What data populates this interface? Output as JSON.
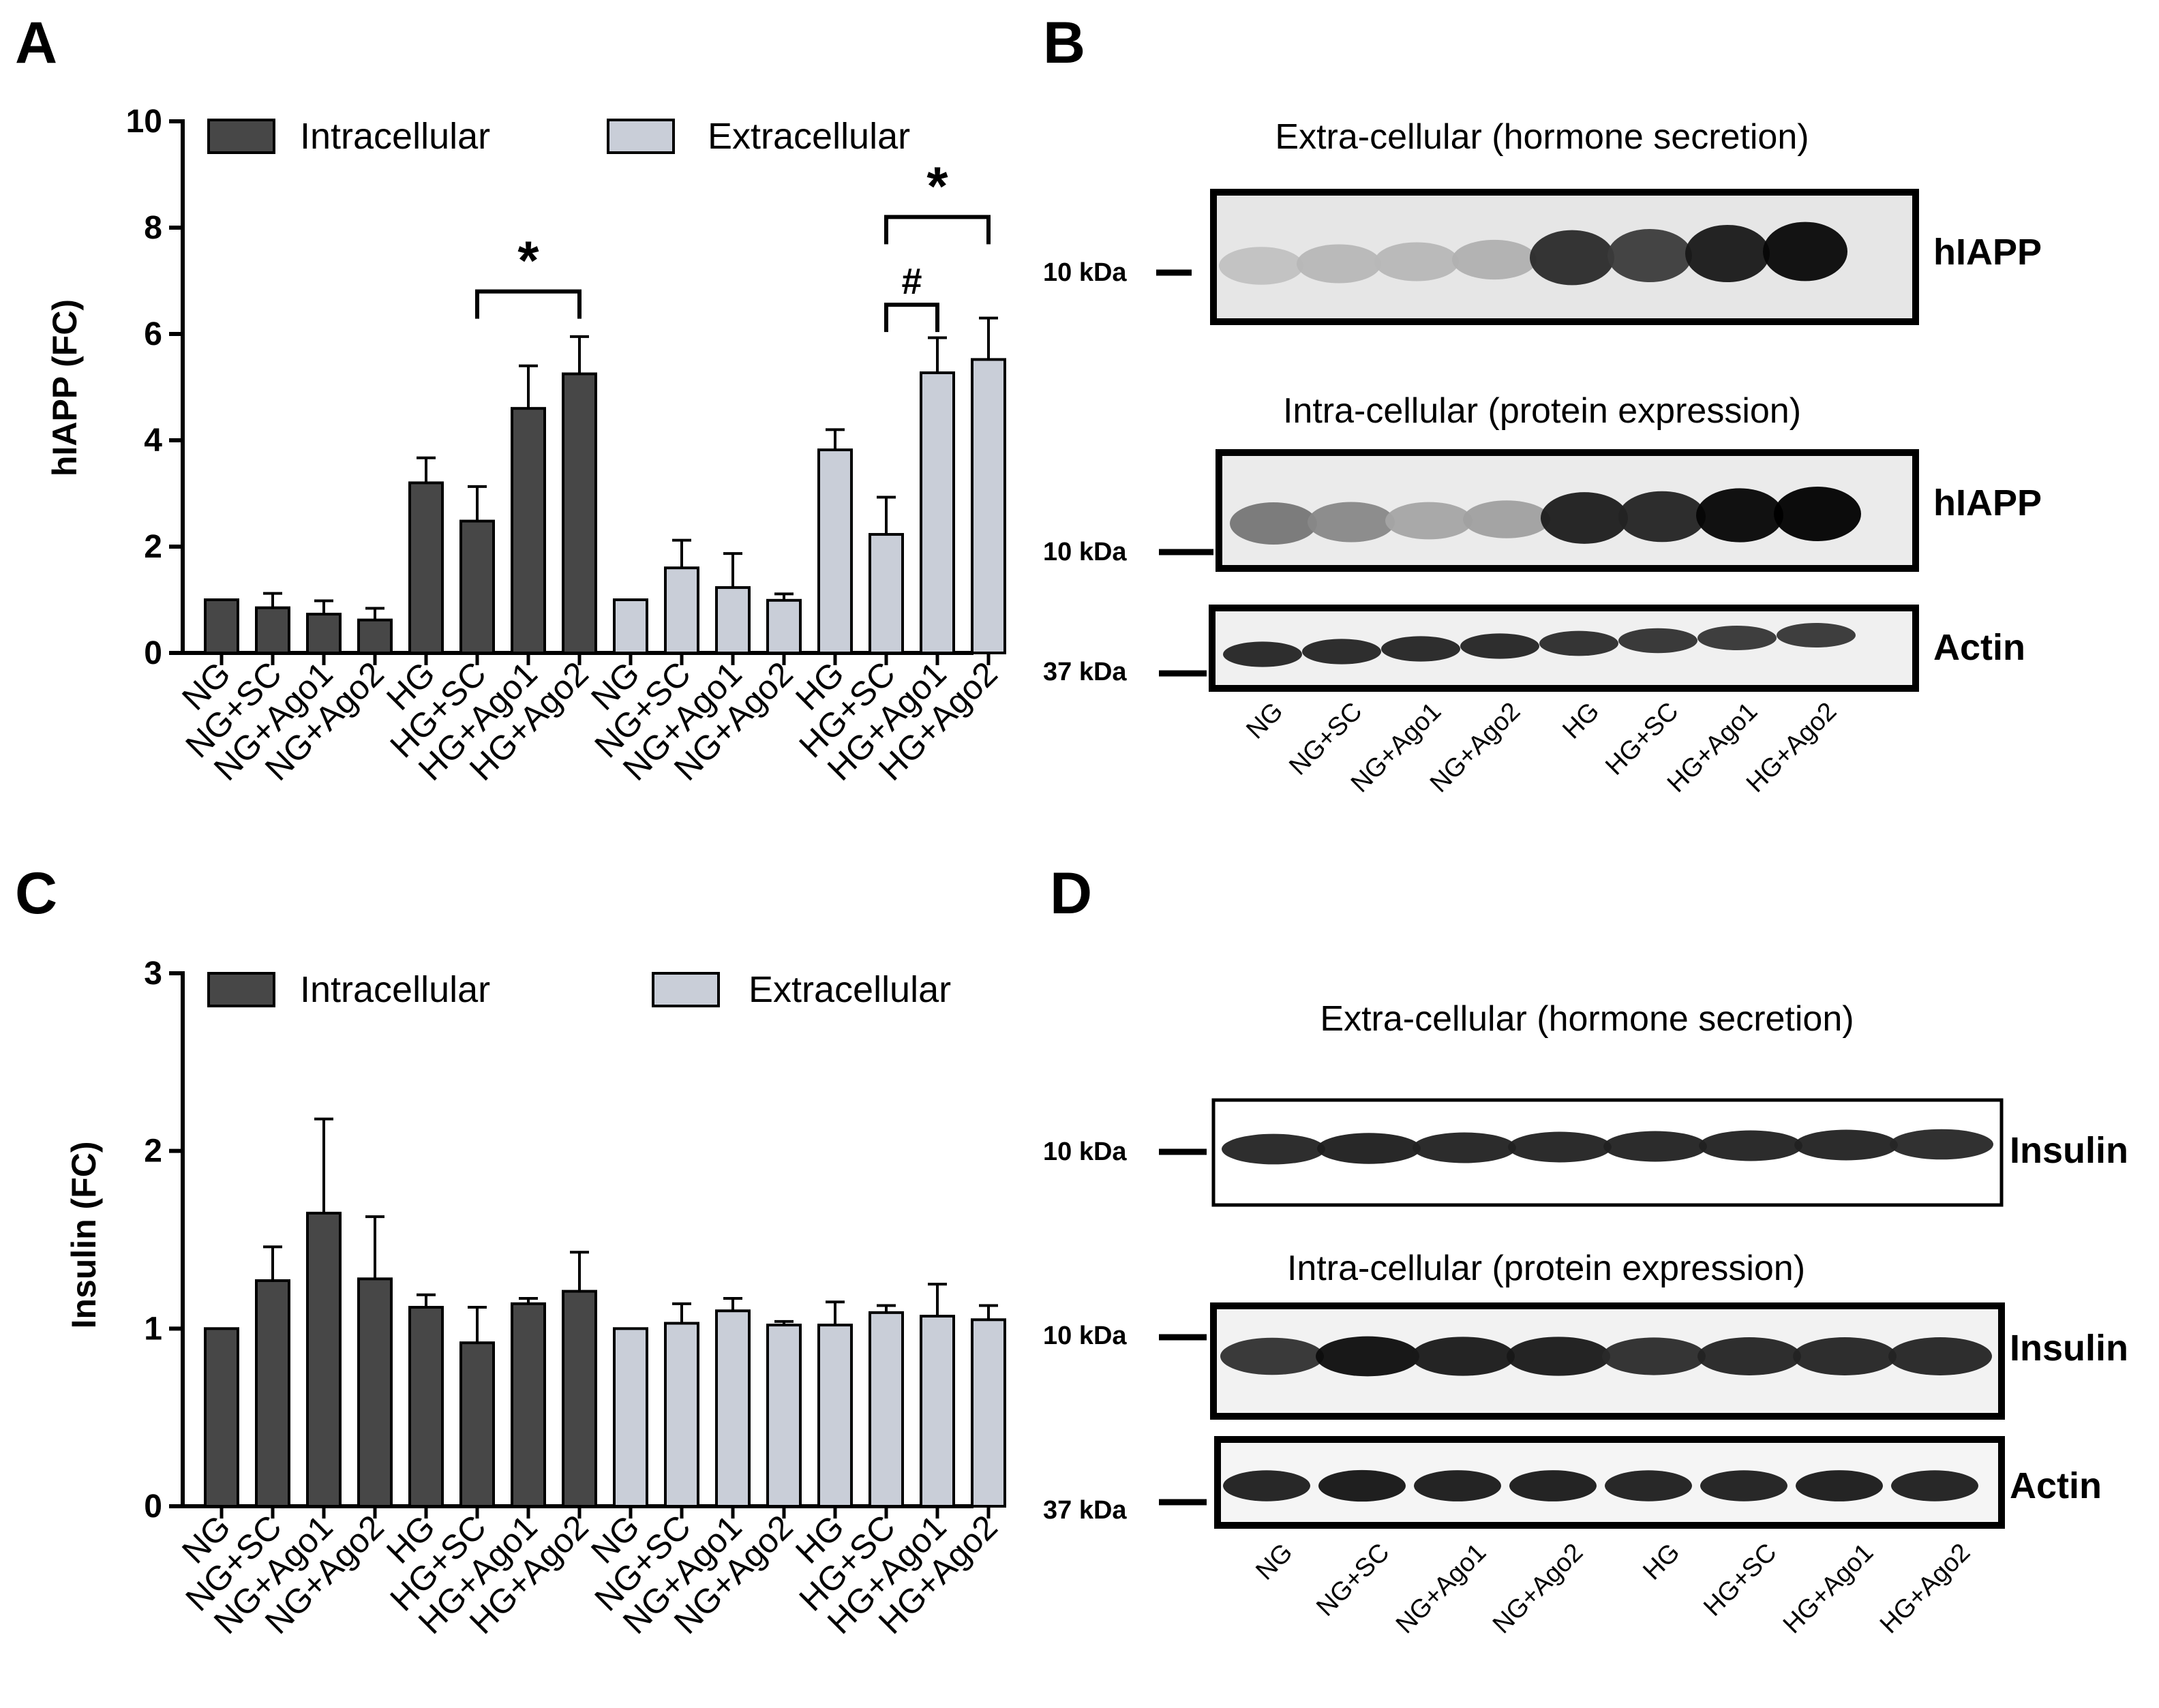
{
  "colors": {
    "intracellular": "#474747",
    "extracellular": "#c9ced8",
    "axis": "#000000"
  },
  "panels": {
    "A": {
      "letter": "A"
    },
    "B": {
      "letter": "B"
    },
    "C": {
      "letter": "C"
    },
    "D": {
      "letter": "D"
    }
  },
  "chart_data": [
    {
      "type": "bar",
      "panel": "A",
      "title": "",
      "ylabel": "hIAPP (FC)",
      "xlabel": "",
      "ylim": [
        0,
        10
      ],
      "yticks": [
        "0",
        "2",
        "4",
        "6",
        "8",
        "10"
      ],
      "legend": [
        "Intracellular",
        "Extracellular"
      ],
      "legend_position": "top",
      "categories": [
        "NG",
        "NG+SC",
        "NG+Ago1",
        "NG+Ago2",
        "HG",
        "HG+SC",
        "HG+Ago1",
        "HG+Ago2"
      ],
      "series": [
        {
          "name": "Intracellular",
          "values": [
            1.0,
            0.85,
            0.73,
            0.62,
            3.2,
            2.48,
            4.6,
            5.25
          ],
          "errors": [
            0.0,
            0.27,
            0.25,
            0.22,
            0.47,
            0.65,
            0.8,
            0.7
          ]
        },
        {
          "name": "Extracellular",
          "values": [
            1.0,
            1.6,
            1.23,
            0.99,
            3.82,
            2.23,
            5.27,
            5.52
          ],
          "errors": [
            0.0,
            0.52,
            0.64,
            0.12,
            0.38,
            0.7,
            0.66,
            0.78
          ]
        }
      ],
      "annotations": [
        {
          "text": "*",
          "series": 0,
          "from": 5,
          "to": 7,
          "level": 6.8
        },
        {
          "text": "#",
          "series": 1,
          "from": 5,
          "to": 6,
          "level": 6.55
        },
        {
          "text": "*",
          "series": 1,
          "from": 5,
          "to": 7,
          "level": 8.2
        }
      ]
    },
    {
      "type": "bar",
      "panel": "C",
      "title": "",
      "ylabel": "Insulin (FC)",
      "xlabel": "",
      "ylim": [
        0,
        3
      ],
      "yticks": [
        "0",
        "1",
        "2",
        "3"
      ],
      "legend": [
        "Intracellular",
        "Extracellular"
      ],
      "legend_position": "top",
      "categories": [
        "NG",
        "NG+SC",
        "NG+Ago1",
        "NG+Ago2",
        "HG",
        "HG+SC",
        "HG+Ago1",
        "HG+Ago2"
      ],
      "series": [
        {
          "name": "Intracellular",
          "values": [
            1.0,
            1.27,
            1.65,
            1.28,
            1.12,
            0.92,
            1.14,
            1.21
          ],
          "errors": [
            0.0,
            0.19,
            0.53,
            0.35,
            0.07,
            0.2,
            0.03,
            0.22
          ]
        },
        {
          "name": "Extracellular",
          "values": [
            1.0,
            1.03,
            1.1,
            1.02,
            1.02,
            1.09,
            1.07,
            1.05
          ],
          "errors": [
            0.0,
            0.11,
            0.07,
            0.02,
            0.13,
            0.04,
            0.18,
            0.08
          ]
        }
      ],
      "annotations": []
    }
  ],
  "blots": {
    "B": {
      "extra_title": "Extra-cellular (hormone secretion)",
      "intra_title": "Intra-cellular  (protein expression)",
      "extra_marker": "10 kDa",
      "intra_marker": "10 kDa",
      "actin_marker": "37 kDa",
      "extra_label": "hIAPP",
      "intra_label": "hIAPP",
      "actin_label": "Actin",
      "extra_intensity": [
        0.18,
        0.22,
        0.22,
        0.25,
        0.82,
        0.75,
        0.9,
        0.97
      ],
      "intra_intensity": [
        0.5,
        0.42,
        0.3,
        0.32,
        0.88,
        0.85,
        0.98,
        1.0
      ],
      "actin_intensity": [
        0.85,
        0.85,
        0.85,
        0.85,
        0.82,
        0.8,
        0.78,
        0.78
      ],
      "lanes": [
        "NG",
        "NG+SC",
        "NG+Ago1",
        "NG+Ago2",
        "HG",
        "HG+SC",
        "HG+Ago1",
        "HG+Ago2"
      ]
    },
    "D": {
      "extra_title": "Extra-cellular (hormone secretion)",
      "intra_title": "Intra-cellular  (protein expression)",
      "extra_marker": "10 kDa",
      "intra_marker": "10 kDa",
      "actin_marker": "37 kDa",
      "extra_label": "Insulin",
      "intra_label": "Insulin",
      "actin_label": "Actin",
      "extra_intensity": [
        0.85,
        0.88,
        0.86,
        0.86,
        0.86,
        0.86,
        0.86,
        0.84
      ],
      "intra_intensity": [
        0.8,
        0.95,
        0.9,
        0.9,
        0.82,
        0.85,
        0.85,
        0.85
      ],
      "actin_intensity": [
        0.88,
        0.92,
        0.9,
        0.9,
        0.88,
        0.88,
        0.9,
        0.88
      ],
      "lanes": [
        "NG",
        "NG+SC",
        "NG+Ago1",
        "NG+Ago2",
        "HG",
        "HG+SC",
        "HG+Ago1",
        "HG+Ago2"
      ]
    }
  }
}
